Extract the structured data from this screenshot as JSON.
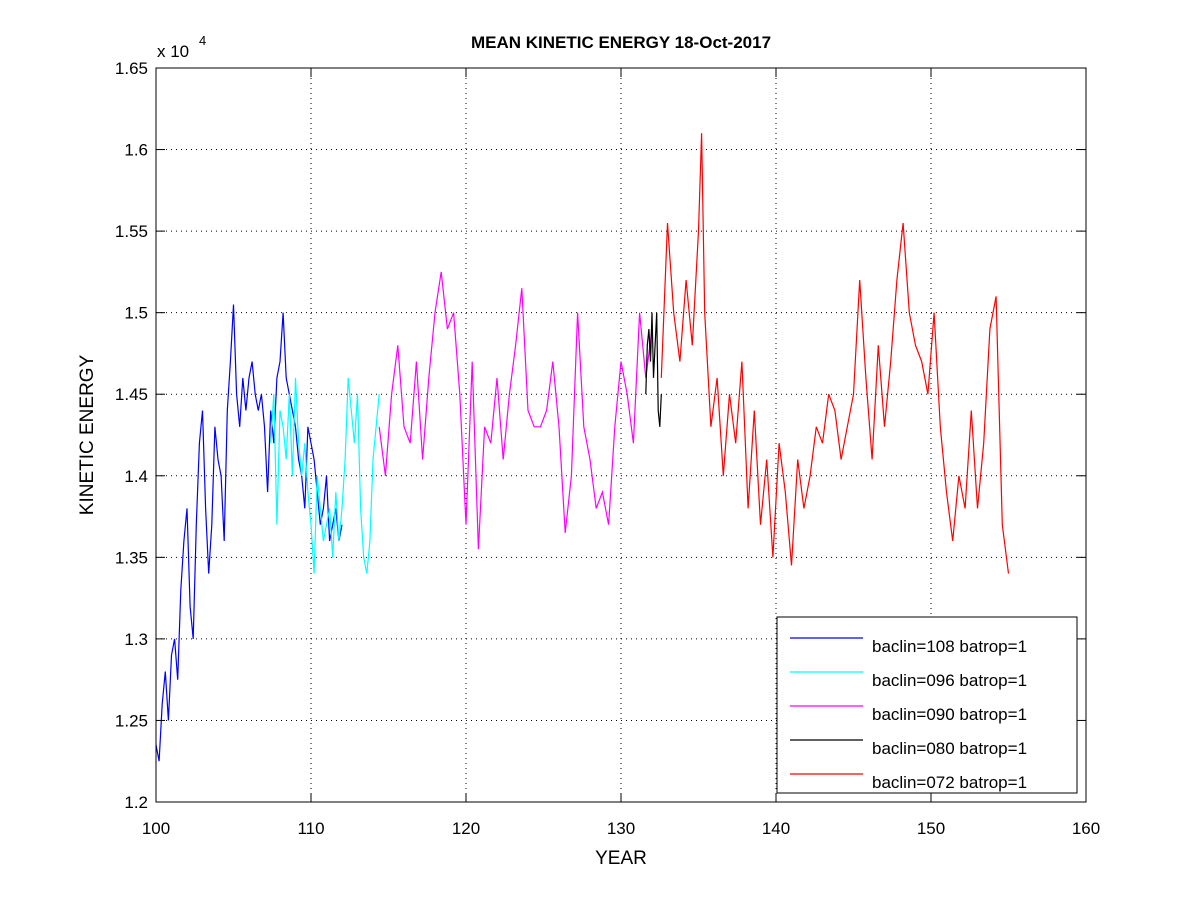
{
  "chart_data": {
    "type": "line",
    "title": "MEAN KINETIC ENERGY 18-Oct-2017",
    "xlabel": "YEAR",
    "ylabel": "KINETIC ENERGY",
    "y_multiplier_label": "x 10",
    "y_multiplier_exponent": "4",
    "xlim": [
      100,
      160
    ],
    "ylim": [
      1.2,
      1.65
    ],
    "x_ticks": [
      100,
      110,
      120,
      130,
      140,
      150,
      160
    ],
    "x_tick_labels": [
      "100",
      "110",
      "120",
      "130",
      "140",
      "150",
      "160"
    ],
    "y_ticks": [
      1.2,
      1.25,
      1.3,
      1.35,
      1.4,
      1.45,
      1.5,
      1.55,
      1.6,
      1.65
    ],
    "y_tick_labels": [
      "1.2",
      "1.25",
      "1.3",
      "1.35",
      "1.4",
      "1.45",
      "1.5",
      "1.55",
      "1.6",
      "1.65"
    ],
    "grid": true,
    "legend_position": "bottom-right",
    "series": [
      {
        "name": "baclin=108 batrop=1",
        "color": "#0000ff",
        "x": [
          100.0,
          100.2,
          100.4,
          100.6,
          100.8,
          101.0,
          101.2,
          101.4,
          101.6,
          101.8,
          102.0,
          102.2,
          102.4,
          102.6,
          102.8,
          103.0,
          103.2,
          103.4,
          103.6,
          103.8,
          104.0,
          104.2,
          104.4,
          104.6,
          104.8,
          105.0,
          105.2,
          105.4,
          105.6,
          105.8,
          106.0,
          106.2,
          106.4,
          106.6,
          106.8,
          107.0,
          107.2,
          107.4,
          107.6,
          107.8,
          108.0,
          108.2,
          108.4,
          108.6,
          108.8,
          109.0,
          109.2,
          109.4,
          109.6,
          109.8,
          110.0,
          110.2,
          110.4,
          110.6,
          110.8,
          111.0,
          111.2,
          111.4,
          111.6,
          111.8,
          112.0
        ],
        "values": [
          1.235,
          1.225,
          1.26,
          1.28,
          1.25,
          1.29,
          1.3,
          1.275,
          1.33,
          1.36,
          1.38,
          1.32,
          1.3,
          1.37,
          1.42,
          1.44,
          1.38,
          1.34,
          1.37,
          1.43,
          1.41,
          1.4,
          1.36,
          1.44,
          1.47,
          1.505,
          1.45,
          1.43,
          1.46,
          1.44,
          1.46,
          1.47,
          1.45,
          1.44,
          1.45,
          1.43,
          1.39,
          1.44,
          1.42,
          1.46,
          1.47,
          1.5,
          1.46,
          1.45,
          1.44,
          1.43,
          1.41,
          1.4,
          1.38,
          1.43,
          1.42,
          1.41,
          1.39,
          1.37,
          1.38,
          1.4,
          1.36,
          1.37,
          1.38,
          1.36,
          1.37
        ]
      },
      {
        "name": "baclin=096 batrop=1",
        "color": "#00ffff",
        "x": [
          107.4,
          107.6,
          107.8,
          108.0,
          108.2,
          108.4,
          108.6,
          108.8,
          109.0,
          109.2,
          109.4,
          109.6,
          109.8,
          110.0,
          110.2,
          110.4,
          110.6,
          110.8,
          111.0,
          111.2,
          111.4,
          111.6,
          111.8,
          112.0,
          112.2,
          112.4,
          112.6,
          112.8,
          113.0,
          113.2,
          113.4,
          113.6,
          113.8,
          114.0,
          114.2,
          114.4
        ],
        "values": [
          1.42,
          1.45,
          1.37,
          1.44,
          1.43,
          1.41,
          1.45,
          1.4,
          1.46,
          1.42,
          1.4,
          1.42,
          1.39,
          1.37,
          1.34,
          1.4,
          1.38,
          1.36,
          1.37,
          1.38,
          1.35,
          1.39,
          1.36,
          1.38,
          1.41,
          1.46,
          1.44,
          1.42,
          1.45,
          1.38,
          1.35,
          1.34,
          1.36,
          1.41,
          1.43,
          1.45
        ]
      },
      {
        "name": "baclin=090 batrop=1",
        "color": "#ff00ff",
        "x": [
          114.4,
          114.8,
          115.2,
          115.6,
          116.0,
          116.4,
          116.8,
          117.2,
          117.6,
          118.0,
          118.4,
          118.8,
          119.2,
          119.6,
          120.0,
          120.4,
          120.8,
          121.2,
          121.6,
          122.0,
          122.4,
          122.8,
          123.2,
          123.6,
          124.0,
          124.4,
          124.8,
          125.2,
          125.6,
          126.0,
          126.4,
          126.8,
          127.2,
          127.6,
          128.0,
          128.4,
          128.8,
          129.2,
          129.6,
          130.0,
          130.4,
          130.8,
          131.2,
          131.6,
          132.0
        ],
        "values": [
          1.43,
          1.4,
          1.45,
          1.48,
          1.43,
          1.42,
          1.47,
          1.41,
          1.46,
          1.5,
          1.525,
          1.49,
          1.5,
          1.45,
          1.37,
          1.47,
          1.355,
          1.43,
          1.42,
          1.46,
          1.41,
          1.45,
          1.48,
          1.515,
          1.44,
          1.43,
          1.43,
          1.44,
          1.47,
          1.43,
          1.365,
          1.4,
          1.5,
          1.43,
          1.41,
          1.38,
          1.39,
          1.37,
          1.43,
          1.47,
          1.45,
          1.42,
          1.5,
          1.46,
          1.49
        ]
      },
      {
        "name": "baclin=080 batrop=1",
        "color": "#000000",
        "x": [
          131.6,
          131.7,
          131.8,
          131.9,
          132.0,
          132.1,
          132.2,
          132.3,
          132.4,
          132.5,
          132.6
        ],
        "values": [
          1.45,
          1.48,
          1.49,
          1.47,
          1.5,
          1.46,
          1.48,
          1.5,
          1.44,
          1.43,
          1.45
        ]
      },
      {
        "name": "baclin=072 batrop=1",
        "color": "#ff0000",
        "x": [
          132.6,
          133.0,
          133.4,
          133.8,
          134.2,
          134.6,
          135.0,
          135.2,
          135.4,
          135.8,
          136.2,
          136.6,
          137.0,
          137.4,
          137.8,
          138.2,
          138.6,
          139.0,
          139.4,
          139.8,
          140.2,
          140.6,
          141.0,
          141.4,
          141.8,
          142.2,
          142.6,
          143.0,
          143.4,
          143.8,
          144.2,
          144.6,
          145.0,
          145.4,
          145.8,
          146.2,
          146.6,
          147.0,
          147.4,
          147.8,
          148.2,
          148.6,
          149.0,
          149.4,
          149.8,
          150.2,
          150.6,
          151.0,
          151.4,
          151.8,
          152.2,
          152.6,
          153.0,
          153.4,
          153.8,
          154.2,
          154.6,
          155.0
        ],
        "values": [
          1.46,
          1.555,
          1.5,
          1.47,
          1.52,
          1.48,
          1.55,
          1.61,
          1.5,
          1.43,
          1.46,
          1.4,
          1.45,
          1.42,
          1.47,
          1.38,
          1.44,
          1.37,
          1.41,
          1.35,
          1.42,
          1.39,
          1.345,
          1.41,
          1.38,
          1.4,
          1.43,
          1.42,
          1.45,
          1.44,
          1.41,
          1.43,
          1.45,
          1.52,
          1.46,
          1.41,
          1.48,
          1.43,
          1.47,
          1.52,
          1.555,
          1.5,
          1.48,
          1.47,
          1.45,
          1.5,
          1.43,
          1.39,
          1.36,
          1.4,
          1.38,
          1.44,
          1.38,
          1.42,
          1.49,
          1.51,
          1.37,
          1.34
        ]
      }
    ]
  }
}
